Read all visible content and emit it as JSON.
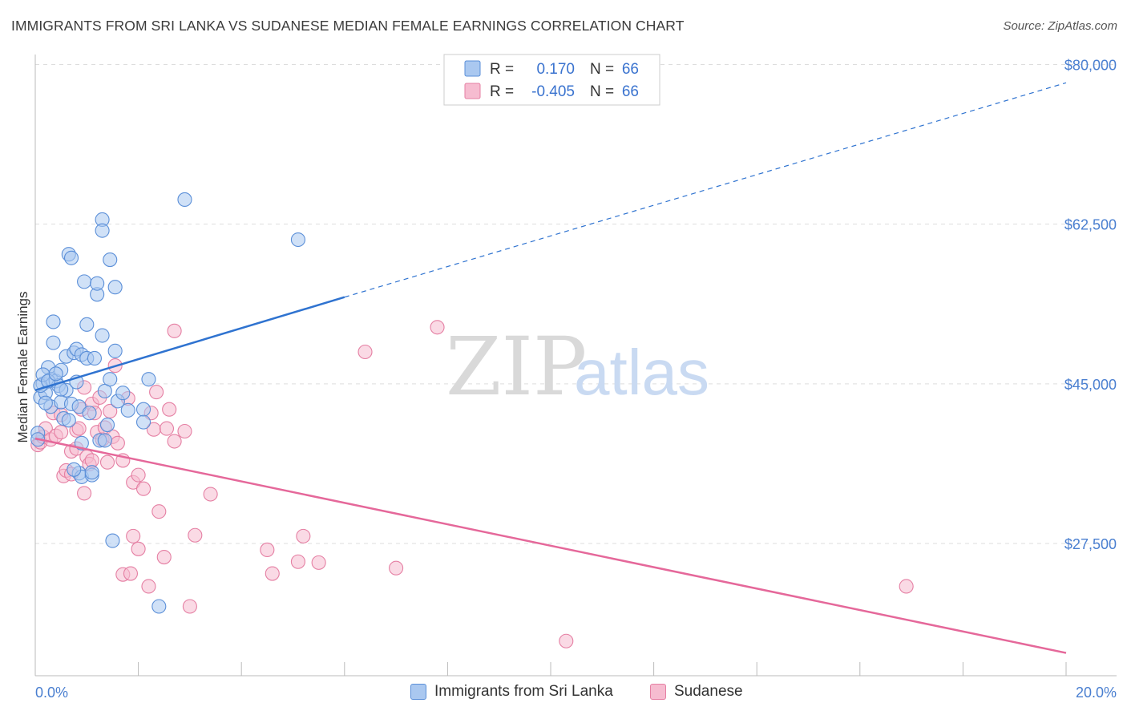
{
  "header": {
    "title": "IMMIGRANTS FROM SRI LANKA VS SUDANESE MEDIAN FEMALE EARNINGS CORRELATION CHART",
    "source": "Source: ZipAtlas.com"
  },
  "watermark": {
    "zip": "ZIP",
    "atlas": "atlas"
  },
  "legend_box": {
    "rows": [
      {
        "r_label": "R =",
        "r_value": "0.170",
        "n_label": "N =",
        "n_value": "66"
      },
      {
        "r_label": "R =",
        "r_value": "-0.405",
        "n_label": "N =",
        "n_value": "66"
      }
    ]
  },
  "bottom_legend": {
    "series1": "Immigrants from Sri Lanka",
    "series2": "Sudanese"
  },
  "colors": {
    "blue_fill": "#aac8f0",
    "blue_stroke": "#5b8fd8",
    "blue_line": "#2f73d0",
    "pink_fill": "#f6bcd0",
    "pink_stroke": "#e57fa3",
    "pink_line": "#e5689a",
    "grid": "#dddddd",
    "tick_label": "#4a7fd0"
  },
  "chart_data": {
    "type": "scatter",
    "title": "IMMIGRANTS FROM SRI LANKA VS SUDANESE MEDIAN FEMALE EARNINGS CORRELATION CHART",
    "xlabel": "",
    "ylabel": "Median Female Earnings",
    "xlim": [
      0,
      20
    ],
    "ylim": [
      13000,
      84000
    ],
    "x_tick_labels": [
      "0.0%",
      "20.0%"
    ],
    "y_ticks": [
      27500,
      45000,
      62500,
      80000
    ],
    "y_tick_labels": [
      "$27,500",
      "$45,000",
      "$62,500",
      "$80,000"
    ],
    "series": [
      {
        "name": "Immigrants from Sri Lanka",
        "R": 0.17,
        "N": 66,
        "trend": {
          "x0": 0.0,
          "y0": 44300,
          "x1_solid": 6.0,
          "y1_solid": 54500,
          "x1": 20.0,
          "y1": 78000
        },
        "points": [
          [
            0.1,
            43500
          ],
          [
            0.15,
            45000
          ],
          [
            0.2,
            44000
          ],
          [
            0.25,
            46800
          ],
          [
            0.3,
            45500
          ],
          [
            0.3,
            42500
          ],
          [
            0.35,
            49500
          ],
          [
            0.35,
            51800
          ],
          [
            0.4,
            45300
          ],
          [
            0.45,
            44800
          ],
          [
            0.5,
            46500
          ],
          [
            0.5,
            43000
          ],
          [
            0.55,
            41200
          ],
          [
            0.6,
            44300
          ],
          [
            0.6,
            48000
          ],
          [
            0.65,
            59200
          ],
          [
            0.7,
            58800
          ],
          [
            0.7,
            42800
          ],
          [
            0.75,
            48400
          ],
          [
            0.8,
            45200
          ],
          [
            0.8,
            48800
          ],
          [
            0.85,
            42500
          ],
          [
            0.85,
            35200
          ],
          [
            0.9,
            34800
          ],
          [
            0.9,
            38500
          ],
          [
            0.9,
            48200
          ],
          [
            0.95,
            56200
          ],
          [
            1.0,
            51500
          ],
          [
            1.0,
            47800
          ],
          [
            1.05,
            41800
          ],
          [
            1.1,
            35000
          ],
          [
            1.1,
            35300
          ],
          [
            1.15,
            47800
          ],
          [
            1.2,
            54800
          ],
          [
            1.2,
            56000
          ],
          [
            1.25,
            38800
          ],
          [
            1.3,
            50300
          ],
          [
            1.3,
            63000
          ],
          [
            1.3,
            61800
          ],
          [
            1.35,
            44200
          ],
          [
            1.35,
            38800
          ],
          [
            1.4,
            40500
          ],
          [
            1.45,
            58600
          ],
          [
            1.45,
            45500
          ],
          [
            1.5,
            27800
          ],
          [
            1.55,
            48600
          ],
          [
            1.55,
            55600
          ],
          [
            1.6,
            43100
          ],
          [
            1.8,
            42100
          ],
          [
            2.1,
            42200
          ],
          [
            2.1,
            40800
          ],
          [
            2.2,
            45500
          ],
          [
            2.4,
            20600
          ],
          [
            2.9,
            65200
          ],
          [
            5.1,
            60800
          ],
          [
            0.05,
            39600
          ],
          [
            0.05,
            38900
          ],
          [
            0.1,
            44800
          ],
          [
            0.15,
            46000
          ],
          [
            0.2,
            42900
          ],
          [
            0.25,
            45300
          ],
          [
            0.4,
            46100
          ],
          [
            0.5,
            44400
          ],
          [
            0.65,
            41000
          ],
          [
            0.75,
            35600
          ],
          [
            1.7,
            44000
          ]
        ]
      },
      {
        "name": "Sudanese",
        "R": -0.405,
        "N": 66,
        "trend": {
          "x0": 0.0,
          "y0": 39000,
          "x1": 20.0,
          "y1": 15500
        },
        "points": [
          [
            0.05,
            38300
          ],
          [
            0.1,
            38600
          ],
          [
            0.15,
            39200
          ],
          [
            0.2,
            40100
          ],
          [
            0.3,
            38900
          ],
          [
            0.35,
            41800
          ],
          [
            0.4,
            39300
          ],
          [
            0.5,
            41600
          ],
          [
            0.5,
            39700
          ],
          [
            0.55,
            34900
          ],
          [
            0.6,
            35500
          ],
          [
            0.7,
            37600
          ],
          [
            0.7,
            35100
          ],
          [
            0.8,
            39900
          ],
          [
            0.8,
            37900
          ],
          [
            0.85,
            40100
          ],
          [
            0.9,
            42200
          ],
          [
            0.95,
            44600
          ],
          [
            0.95,
            33000
          ],
          [
            1.0,
            37000
          ],
          [
            1.05,
            36200
          ],
          [
            1.1,
            42800
          ],
          [
            1.1,
            36600
          ],
          [
            1.15,
            41800
          ],
          [
            1.2,
            39700
          ],
          [
            1.25,
            43500
          ],
          [
            1.3,
            38900
          ],
          [
            1.35,
            40200
          ],
          [
            1.4,
            36400
          ],
          [
            1.45,
            42000
          ],
          [
            1.5,
            39200
          ],
          [
            1.55,
            47000
          ],
          [
            1.6,
            38500
          ],
          [
            1.7,
            36600
          ],
          [
            1.7,
            24100
          ],
          [
            1.8,
            43400
          ],
          [
            1.85,
            24200
          ],
          [
            1.9,
            28300
          ],
          [
            1.9,
            34200
          ],
          [
            2.0,
            35000
          ],
          [
            2.0,
            26900
          ],
          [
            2.1,
            33500
          ],
          [
            2.2,
            22800
          ],
          [
            2.25,
            41800
          ],
          [
            2.3,
            40000
          ],
          [
            2.35,
            44100
          ],
          [
            2.4,
            31000
          ],
          [
            2.5,
            26000
          ],
          [
            2.55,
            40100
          ],
          [
            2.6,
            42200
          ],
          [
            2.7,
            50800
          ],
          [
            2.7,
            38700
          ],
          [
            2.9,
            39800
          ],
          [
            3.0,
            20600
          ],
          [
            3.1,
            28400
          ],
          [
            3.4,
            32900
          ],
          [
            4.5,
            26800
          ],
          [
            4.6,
            24200
          ],
          [
            5.1,
            25500
          ],
          [
            5.2,
            28300
          ],
          [
            5.5,
            25400
          ],
          [
            6.4,
            48500
          ],
          [
            7.0,
            24800
          ],
          [
            7.8,
            51200
          ],
          [
            10.3,
            16800
          ],
          [
            16.9,
            22800
          ]
        ]
      }
    ]
  }
}
